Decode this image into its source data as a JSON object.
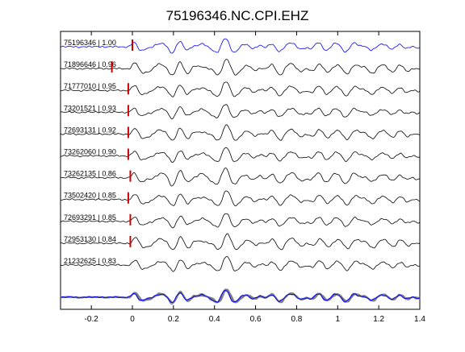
{
  "chart_data": {
    "type": "line",
    "title": "75196346.NC.CPI.EHZ",
    "xlabel": "",
    "ylabel": "",
    "xlim": [
      -0.35,
      1.4
    ],
    "x_ticks": [
      -0.2,
      0,
      0.2,
      0.4,
      0.6,
      0.8,
      1,
      1.2,
      1.4
    ],
    "x_tick_labels": [
      "-0.2",
      "0",
      "0.2",
      "0.4",
      "0.6",
      "0.8",
      "1",
      "1.2",
      "1.4"
    ],
    "grid": false,
    "legend": "none",
    "reference_color": "#0000ff",
    "trace_color": "#000000",
    "pick_color": "#cc0000",
    "stack_overlay_color": "#808080",
    "series": [
      {
        "label": "75196346 | 1.00",
        "pick_time": 0.0,
        "reference": true
      },
      {
        "label": "71896646 | 0.96",
        "pick_time": -0.1
      },
      {
        "label": "71777010 | 0.95",
        "pick_time": -0.02
      },
      {
        "label": "73201521 | 0.93",
        "pick_time": -0.02
      },
      {
        "label": "72693131 | 0.92",
        "pick_time": -0.02
      },
      {
        "label": "73262060 | 0.90",
        "pick_time": -0.02
      },
      {
        "label": "73262135 | 0.86",
        "pick_time": -0.01
      },
      {
        "label": "73502420 | 0.85",
        "pick_time": -0.02
      },
      {
        "label": "72693291 | 0.85",
        "pick_time": -0.01
      },
      {
        "label": "72953130 | 0.84",
        "pick_time": -0.01
      },
      {
        "label": "21232625 | 0.83",
        "pick_time": null
      }
    ]
  }
}
